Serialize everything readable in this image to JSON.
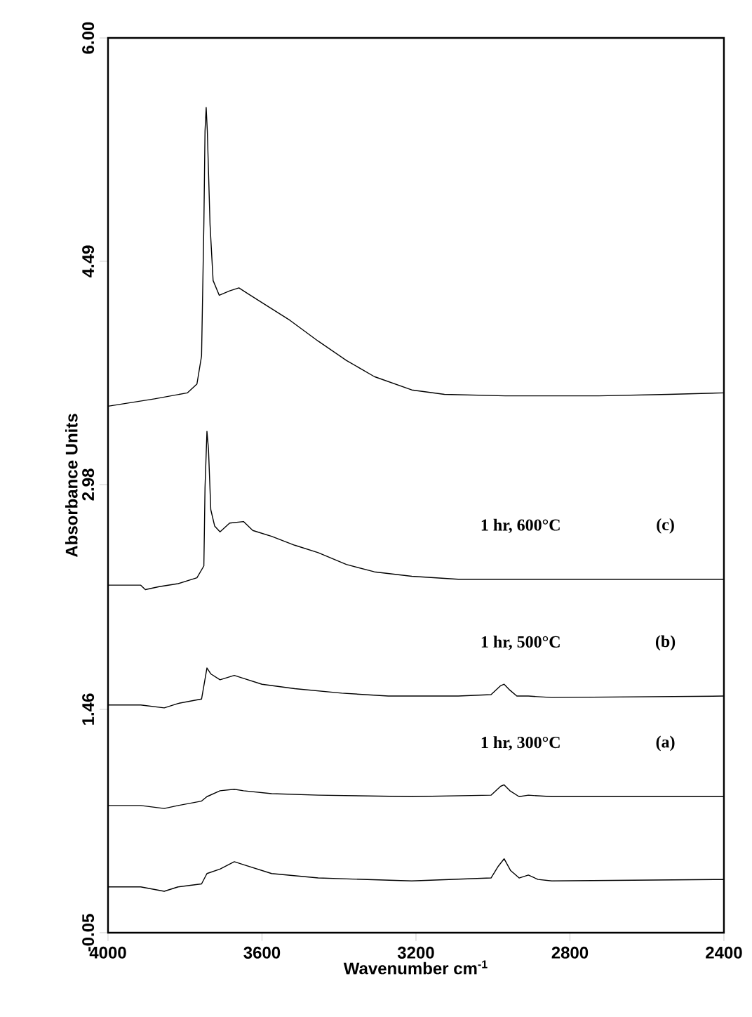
{
  "chart_data": {
    "type": "line",
    "xlabel": "Wavenumber cm$^{-1}$",
    "ylabel": "Absorbance Units",
    "xlim": [
      4000,
      2400
    ],
    "ylim": [
      -0.05,
      6.0
    ],
    "xticks": [
      4000,
      3600,
      3200,
      2800,
      2400
    ],
    "yticks": [
      {
        "value": -0.05,
        "label": "-0.05"
      },
      {
        "value": 1.46,
        "label": "1.46"
      },
      {
        "value": 2.98,
        "label": "2.98"
      },
      {
        "value": 4.49,
        "label": "4.49"
      },
      {
        "value": 6.0,
        "label": "6.00"
      }
    ],
    "grid": false,
    "marker": "none",
    "line_style": "solid",
    "series": [
      {
        "color": "#000000",
        "x": [
          4000,
          3879,
          3794,
          3769,
          3757,
          3751,
          3748,
          3745,
          3742,
          3735,
          3727,
          3711,
          3684,
          3660,
          3636,
          3600,
          3527,
          3454,
          3381,
          3308,
          3211,
          3126,
          2968,
          2725,
          2543,
          2400
        ],
        "values": [
          3.51,
          3.56,
          3.6,
          3.66,
          3.85,
          4.74,
          5.37,
          5.53,
          5.37,
          4.74,
          4.36,
          4.26,
          4.29,
          4.31,
          4.27,
          4.21,
          4.09,
          3.95,
          3.82,
          3.71,
          3.62,
          3.59,
          3.58,
          3.58,
          3.59,
          3.6
        ]
      },
      {
        "color": "#000000",
        "x": [
          4000,
          3915,
          3903,
          3867,
          3818,
          3769,
          3751,
          3748,
          3743,
          3739,
          3733,
          3723,
          3709,
          3684,
          3648,
          3624,
          3575,
          3515,
          3454,
          3381,
          3308,
          3211,
          3090,
          2968,
          2725,
          2400
        ],
        "values": [
          2.3,
          2.3,
          2.27,
          2.29,
          2.31,
          2.35,
          2.43,
          2.96,
          3.34,
          3.22,
          2.81,
          2.7,
          2.66,
          2.72,
          2.73,
          2.67,
          2.63,
          2.57,
          2.52,
          2.44,
          2.39,
          2.36,
          2.34,
          2.34,
          2.34,
          2.34
        ]
      },
      {
        "color": "#000000",
        "x": [
          4000,
          3915,
          3854,
          3818,
          3757,
          3743,
          3733,
          3709,
          3672,
          3648,
          3600,
          3515,
          3393,
          3272,
          3090,
          3005,
          2980,
          2971,
          2956,
          2938,
          2908,
          2847,
          2400
        ],
        "values": [
          1.49,
          1.49,
          1.47,
          1.5,
          1.53,
          1.74,
          1.7,
          1.66,
          1.69,
          1.67,
          1.63,
          1.6,
          1.57,
          1.55,
          1.55,
          1.56,
          1.62,
          1.63,
          1.59,
          1.55,
          1.55,
          1.54,
          1.55
        ]
      },
      {
        "color": "#000000",
        "x": [
          4000,
          3915,
          3854,
          3818,
          3757,
          3743,
          3709,
          3672,
          3648,
          3575,
          3454,
          3211,
          3005,
          2980,
          2971,
          2956,
          2932,
          2908,
          2847,
          2400
        ],
        "values": [
          0.81,
          0.81,
          0.79,
          0.81,
          0.84,
          0.87,
          0.91,
          0.92,
          0.91,
          0.89,
          0.88,
          0.87,
          0.88,
          0.94,
          0.95,
          0.91,
          0.87,
          0.88,
          0.87,
          0.87
        ]
      },
      {
        "color": "#000000",
        "x": [
          4000,
          3915,
          3854,
          3818,
          3757,
          3743,
          3709,
          3672,
          3648,
          3575,
          3454,
          3211,
          3005,
          2986,
          2971,
          2954,
          2932,
          2908,
          2883,
          2847,
          2400
        ],
        "values": [
          0.26,
          0.26,
          0.23,
          0.26,
          0.28,
          0.35,
          0.38,
          0.43,
          0.41,
          0.35,
          0.32,
          0.3,
          0.32,
          0.4,
          0.45,
          0.37,
          0.32,
          0.34,
          0.31,
          0.3,
          0.31
        ]
      }
    ],
    "annotations": [
      "1 hr, 600°C",
      "(c)",
      "1 hr, 500°C",
      "(b)",
      "1 hr, 300°C",
      "(a)"
    ]
  }
}
